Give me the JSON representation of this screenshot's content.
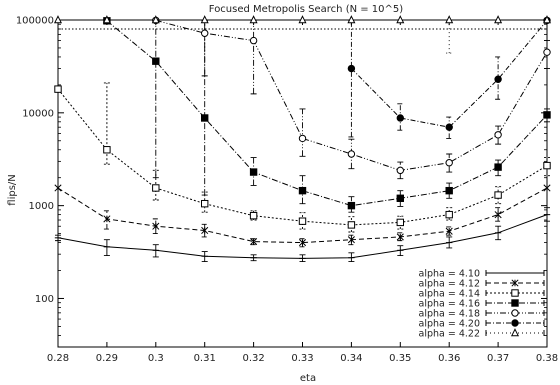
{
  "chart_data": {
    "type": "line",
    "title": "Focused Metropolis Search (N = 10^5)",
    "xlabel": "eta",
    "ylabel": "flips/N",
    "xlim": [
      0.28,
      0.38
    ],
    "ylim": [
      30,
      100000
    ],
    "yscale": "log",
    "x_ticks": [
      0.28,
      0.29,
      0.3,
      0.31,
      0.32,
      0.33,
      0.34,
      0.35,
      0.36,
      0.37,
      0.38
    ],
    "x_tick_labels": [
      "0.28",
      "0.29",
      "0.3",
      "0.31",
      "0.32",
      "0.33",
      "0.34",
      "0.35",
      "0.36",
      "0.37",
      "0.38"
    ],
    "y_ticks": [
      100,
      1000,
      10000,
      100000
    ],
    "y_tick_labels": [
      "100",
      "1000",
      "10000",
      "100000"
    ],
    "cutoff_line": 80000,
    "grid": false,
    "legend_position": "bottom-right",
    "series": [
      {
        "name": "alpha = 4.10",
        "marker": "bar",
        "dash": "",
        "x": [
          0.28,
          0.29,
          0.3,
          0.31,
          0.32,
          0.33,
          0.34,
          0.35,
          0.36,
          0.37,
          0.38
        ],
        "y": [
          450,
          360,
          330,
          285,
          275,
          270,
          275,
          330,
          400,
          510,
          800
        ],
        "err_lo": [
          420,
          290,
          280,
          250,
          255,
          250,
          250,
          290,
          350,
          430,
          680
        ],
        "err_hi": [
          480,
          430,
          380,
          320,
          295,
          295,
          310,
          370,
          460,
          600,
          950
        ]
      },
      {
        "name": "alpha = 4.12",
        "marker": "x",
        "dash": "5,3",
        "x": [
          0.28,
          0.29,
          0.3,
          0.31,
          0.32,
          0.33,
          0.34,
          0.35,
          0.36,
          0.37,
          0.38
        ],
        "y": [
          1550,
          720,
          600,
          540,
          410,
          400,
          430,
          460,
          530,
          800,
          1550
        ],
        "err_lo": [
          1550,
          560,
          500,
          460,
          380,
          360,
          380,
          420,
          480,
          680,
          1550
        ],
        "err_hi": [
          1550,
          880,
          720,
          630,
          440,
          440,
          480,
          510,
          590,
          950,
          1550
        ]
      },
      {
        "name": "alpha = 4.14",
        "marker": "open-square",
        "dash": "2,2",
        "x": [
          0.28,
          0.29,
          0.3,
          0.31,
          0.32,
          0.33,
          0.34,
          0.35,
          0.36,
          0.37,
          0.38
        ],
        "y": [
          18000,
          4000,
          1550,
          1050,
          780,
          680,
          620,
          660,
          800,
          1300,
          2700
        ],
        "err_lo": [
          18000,
          2800,
          1150,
          850,
          700,
          560,
          520,
          560,
          700,
          1050,
          2100
        ],
        "err_hi": [
          18000,
          21000,
          2400,
          1400,
          880,
          840,
          760,
          770,
          950,
          1600,
          3300
        ]
      },
      {
        "name": "alpha = 4.16",
        "marker": "filled-square",
        "dash": "6,2,1,2",
        "x": [
          0.29,
          0.3,
          0.31,
          0.32,
          0.33,
          0.34,
          0.35,
          0.36,
          0.37,
          0.38
        ],
        "y": [
          98000,
          36000,
          8800,
          2300,
          1450,
          1000,
          1200,
          1450,
          2600,
          9500
        ],
        "err_lo": [
          98000,
          2000,
          1300,
          1650,
          1050,
          850,
          980,
          1200,
          2100,
          8000
        ],
        "err_hi": [
          98000,
          98000,
          98000,
          3300,
          2100,
          1250,
          1450,
          1750,
          3100,
          11000
        ]
      },
      {
        "name": "alpha = 4.18",
        "marker": "open-circle",
        "dash": "6,2,1,2,1,2",
        "x": [
          0.3,
          0.31,
          0.32,
          0.33,
          0.34,
          0.35,
          0.36,
          0.37,
          0.38
        ],
        "y": [
          99000,
          72000,
          60000,
          5300,
          3600,
          2400,
          2900,
          5800,
          45000
        ],
        "err_lo": [
          99000,
          25000,
          16000,
          3400,
          2500,
          1950,
          2300,
          4600,
          30000
        ],
        "err_hi": [
          99000,
          99000,
          99000,
          11000,
          5200,
          2950,
          3600,
          7200,
          60000
        ]
      },
      {
        "name": "alpha = 4.20",
        "marker": "filled-circle",
        "dash": "5,2,1,2",
        "x": [
          0.34,
          0.35,
          0.36,
          0.37,
          0.38
        ],
        "y": [
          30000,
          8800,
          7000,
          23000,
          99000
        ],
        "err_lo": [
          5500,
          6500,
          5300,
          14000,
          99000
        ],
        "err_hi": [
          99000,
          12500,
          9000,
          40000,
          99000
        ]
      },
      {
        "name": "alpha = 4.22",
        "marker": "open-triangle",
        "dash": "1,3",
        "x": [
          0.28,
          0.29,
          0.3,
          0.31,
          0.32,
          0.33,
          0.34,
          0.35,
          0.36,
          0.37,
          0.38
        ],
        "y": [
          100000,
          100000,
          100000,
          100000,
          100000,
          100000,
          100000,
          100000,
          100000,
          100000,
          100000
        ],
        "err_lo": [
          100000,
          100000,
          100000,
          100000,
          100000,
          100000,
          100000,
          100000,
          44000,
          100000,
          100000
        ],
        "err_hi": [
          100000,
          100000,
          100000,
          100000,
          100000,
          100000,
          100000,
          100000,
          100000,
          100000,
          100000
        ]
      }
    ]
  }
}
